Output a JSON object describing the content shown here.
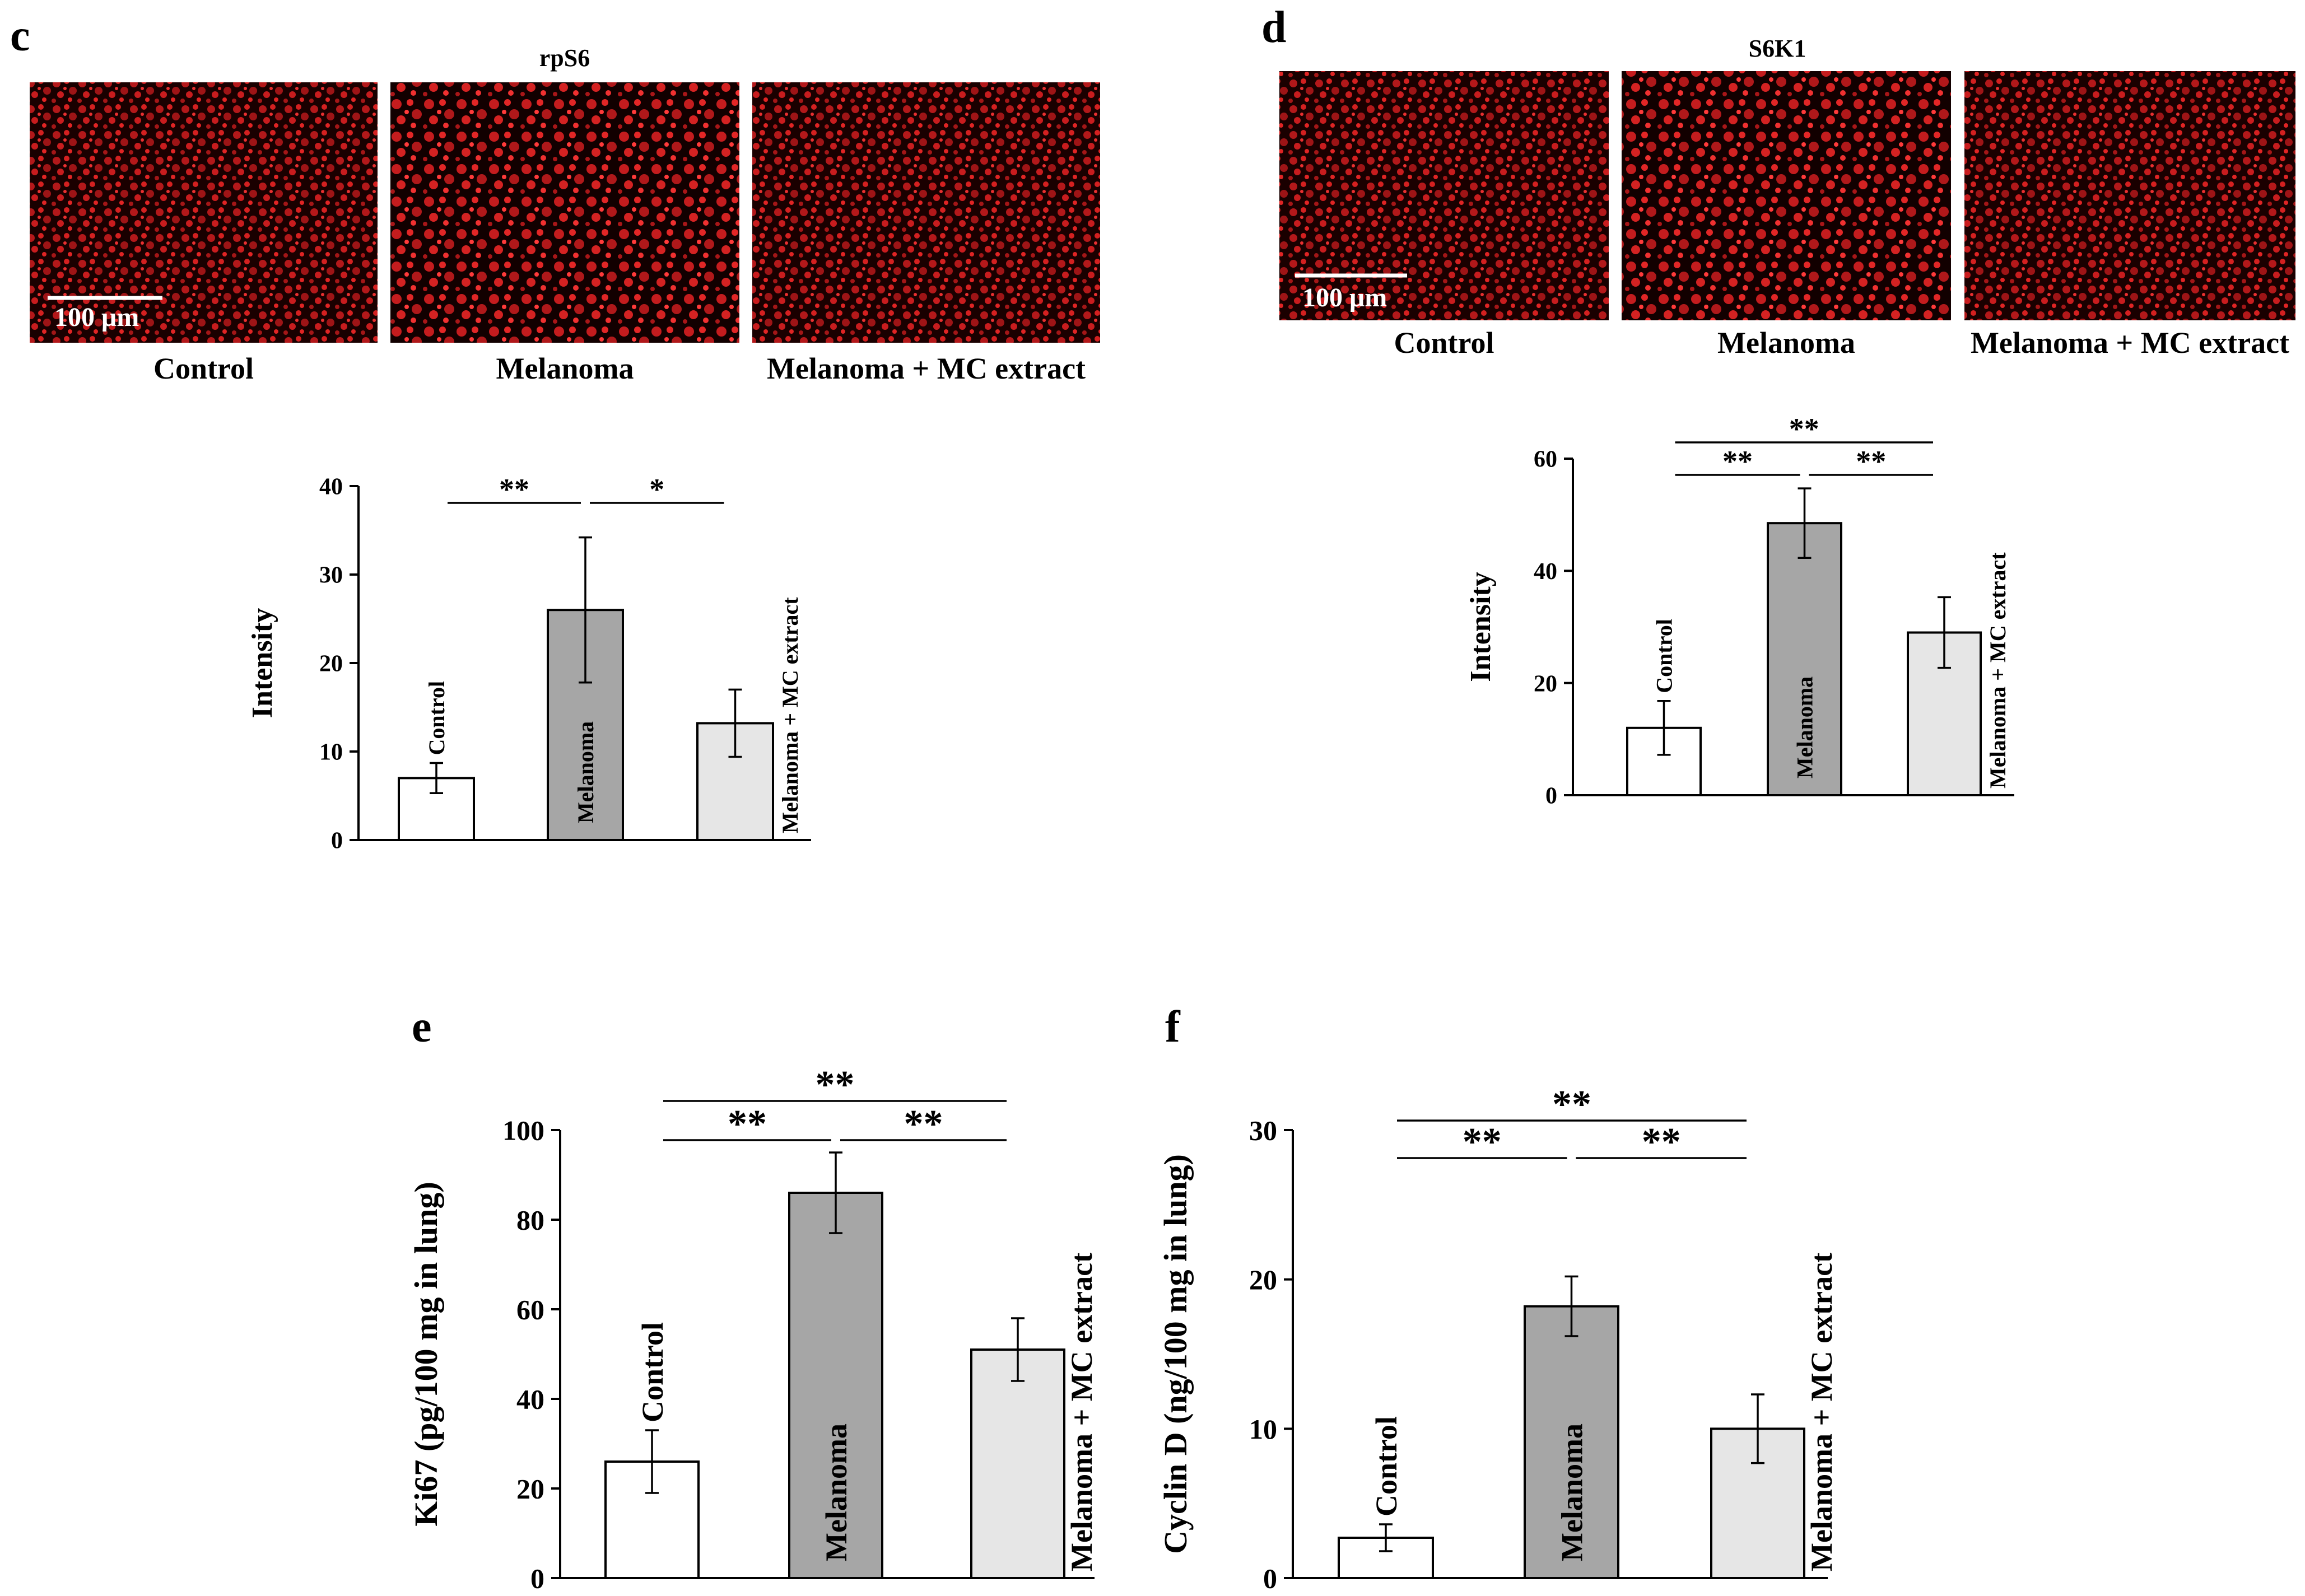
{
  "panels": {
    "c": {
      "letter": "c",
      "title": "rpS6",
      "scale_bar": "100 μm",
      "image_captions": [
        "Control",
        "Melanoma",
        "Melanoma + MC extract"
      ]
    },
    "d": {
      "letter": "d",
      "title": "S6K1",
      "scale_bar": "100 μm",
      "image_captions": [
        "Control",
        "Melanoma",
        "Melanoma + MC extract"
      ]
    },
    "e": {
      "letter": "e"
    },
    "f": {
      "letter": "f"
    }
  },
  "colors": {
    "control_fill": "#ffffff",
    "melanoma_fill": "#a6a6a6",
    "mc_fill": "#e6e6e6",
    "micrograph_bg": "#1a0000",
    "stain": "#d41a1a"
  },
  "chart_data": [
    {
      "id": "c",
      "type": "bar",
      "categories": [
        "Control",
        "Melanoma",
        "Melanoma + MC extract"
      ],
      "values": [
        7,
        26,
        13.2
      ],
      "errors": [
        1.7,
        8.2,
        3.8
      ],
      "xlabel": "",
      "ylabel": "Intensity",
      "ylim": [
        0,
        40
      ],
      "yticks": [
        0,
        10,
        20,
        30,
        40
      ],
      "significance": [
        {
          "from": 0,
          "to": 1,
          "label": "**"
        },
        {
          "from": 1,
          "to": 2,
          "label": "*"
        }
      ]
    },
    {
      "id": "d",
      "type": "bar",
      "categories": [
        "Control",
        "Melanoma",
        "Melanoma + MC extract"
      ],
      "values": [
        12,
        48.5,
        29
      ],
      "errors": [
        4.8,
        6.2,
        6.3
      ],
      "xlabel": "",
      "ylabel": "Intensity",
      "ylim": [
        0,
        60
      ],
      "yticks": [
        0,
        20,
        40,
        60
      ],
      "significance": [
        {
          "from": 0,
          "to": 1,
          "label": "**"
        },
        {
          "from": 1,
          "to": 2,
          "label": "**"
        },
        {
          "from": 0,
          "to": 2,
          "label": "**"
        }
      ]
    },
    {
      "id": "e",
      "type": "bar",
      "categories": [
        "Control",
        "Melanoma",
        "Melanoma + MC extract"
      ],
      "values": [
        26,
        86,
        51
      ],
      "errors": [
        7,
        9,
        7
      ],
      "xlabel": "",
      "ylabel": "Ki67 (pg/100 mg in lung)",
      "ylim": [
        0,
        100
      ],
      "yticks": [
        0,
        20,
        40,
        60,
        80,
        100
      ],
      "significance": [
        {
          "from": 0,
          "to": 1,
          "label": "**"
        },
        {
          "from": 1,
          "to": 2,
          "label": "**"
        },
        {
          "from": 0,
          "to": 2,
          "label": "**"
        }
      ]
    },
    {
      "id": "f",
      "type": "bar",
      "categories": [
        "Control",
        "Melanoma",
        "Melanoma + MC extract"
      ],
      "values": [
        2.7,
        18.2,
        10
      ],
      "errors": [
        0.9,
        2,
        2.3
      ],
      "xlabel": "",
      "ylabel": "Cyclin D (ng/100 mg in lung)",
      "ylim": [
        0,
        30
      ],
      "yticks": [
        0,
        10,
        20,
        30
      ],
      "significance": [
        {
          "from": 0,
          "to": 1,
          "label": "**"
        },
        {
          "from": 1,
          "to": 2,
          "label": "**"
        },
        {
          "from": 0,
          "to": 2,
          "label": "**"
        }
      ]
    }
  ]
}
